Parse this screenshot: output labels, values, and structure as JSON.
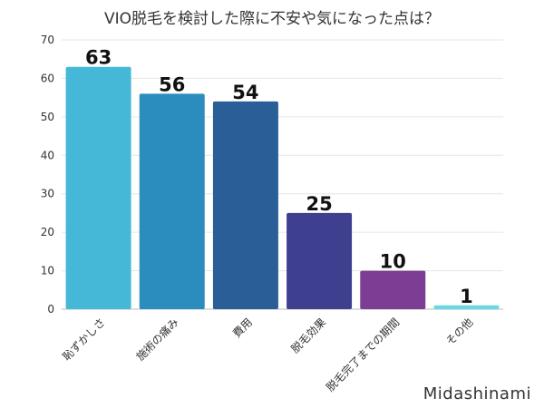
{
  "chart_data": {
    "type": "bar",
    "title": "VIO脱毛を検討した際に不安や気になった点は？",
    "categories": [
      "恥ずかしさ",
      "施術の痛み",
      "費用",
      "脱毛効果",
      "脱毛完了までの期間",
      "その他"
    ],
    "values": [
      63,
      56,
      54,
      25,
      10,
      1
    ],
    "colors": [
      "#45b8d8",
      "#2b8dbd",
      "#2a5e96",
      "#3f3f8f",
      "#7d3d95",
      "#66d9e3"
    ],
    "ylim": [
      0,
      70
    ],
    "yticks": [
      0,
      10,
      20,
      30,
      40,
      50,
      60,
      70
    ],
    "grid": true,
    "xlabel": "",
    "ylabel": ""
  },
  "watermark": "Midashinami"
}
